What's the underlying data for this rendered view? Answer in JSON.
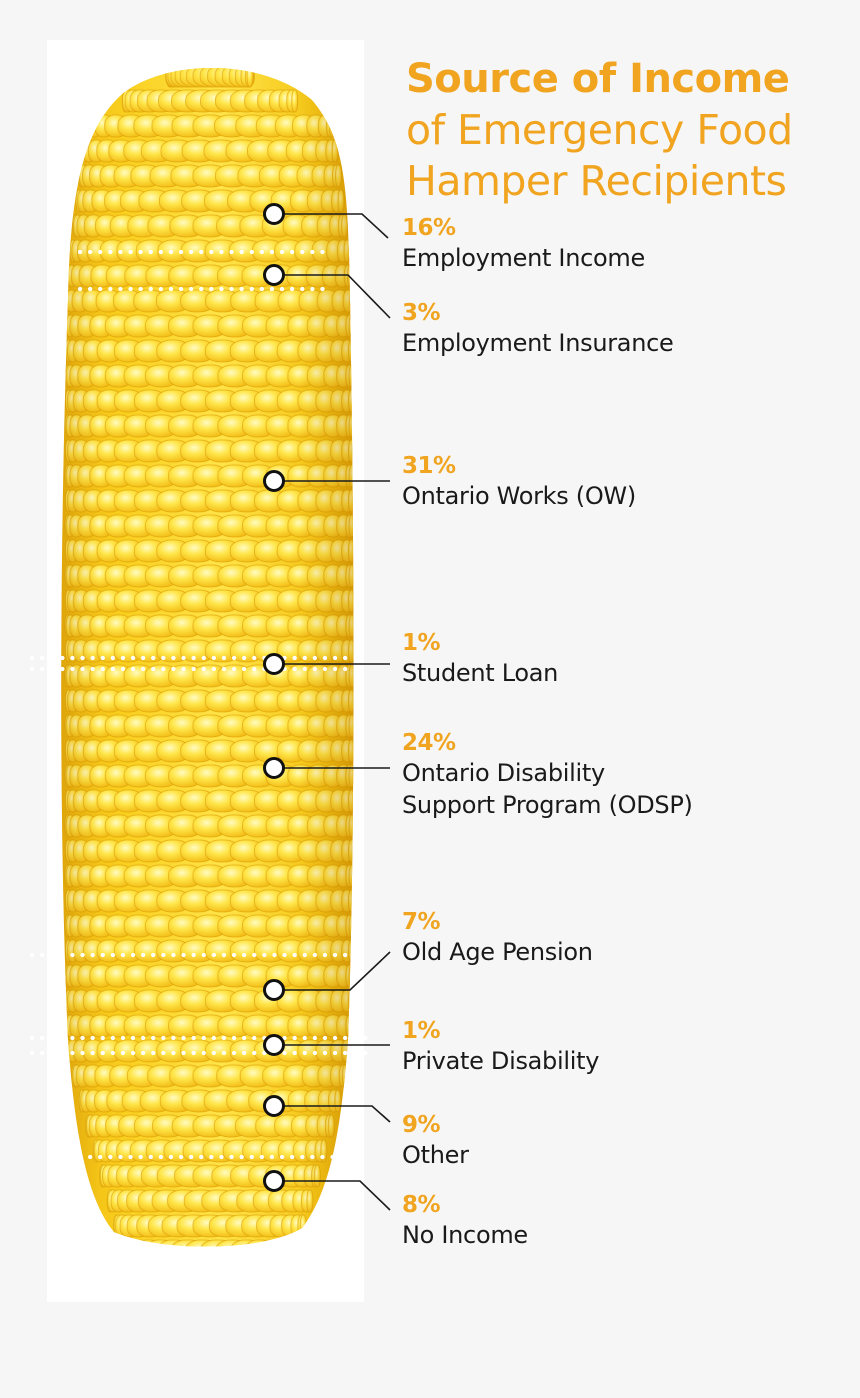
{
  "title": {
    "line1": "Source of Income",
    "line2": "of Emergency Food",
    "line3": "Hamper Recipients"
  },
  "colors": {
    "accent": "#f0a420",
    "text": "#1a1a1a",
    "background": "#f6f6f6",
    "corn_light": "#fff37a",
    "corn_mid": "#fbd420",
    "corn_dark": "#e3a402"
  },
  "chart_data": {
    "type": "bar",
    "visual": "stacked segments along an ear of corn",
    "unit": "%",
    "categories": [
      "Employment Income",
      "Employment Insurance",
      "Ontario Works (OW)",
      "Student Loan",
      "Ontario Disability Support Program (ODSP)",
      "Old Age Pension",
      "Private Disability",
      "Other",
      "No Income"
    ],
    "values": [
      16,
      3,
      31,
      1,
      24,
      7,
      1,
      9,
      8
    ],
    "labels": [
      {
        "pct": "16%",
        "lines": [
          "Employment Income"
        ]
      },
      {
        "pct": "3%",
        "lines": [
          "Employment Insurance"
        ]
      },
      {
        "pct": "31%",
        "lines": [
          "Ontario Works (OW)"
        ]
      },
      {
        "pct": "1%",
        "lines": [
          "Student Loan"
        ]
      },
      {
        "pct": "24%",
        "lines": [
          "Ontario Disability",
          "Support Program (ODSP)"
        ]
      },
      {
        "pct": "7%",
        "lines": [
          "Old Age Pension"
        ]
      },
      {
        "pct": "1%",
        "lines": [
          "Private Disability"
        ]
      },
      {
        "pct": "9%",
        "lines": [
          "Other"
        ]
      },
      {
        "pct": "8%",
        "lines": [
          "No Income"
        ]
      }
    ]
  }
}
